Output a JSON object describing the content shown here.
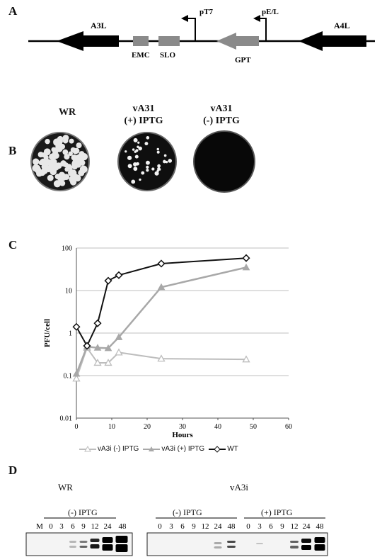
{
  "panels": {
    "A": {
      "letter": "A",
      "genes": {
        "a3l": "A3L",
        "emc": "EMC",
        "slo": "SLO",
        "pt7": "pT7",
        "gpt": "GPT",
        "pel": "pE/L",
        "a4l": "A4L"
      }
    },
    "B": {
      "letter": "B",
      "plates": [
        {
          "label_line1": "WR",
          "label_line2": ""
        },
        {
          "label_line1": "vA31",
          "label_line2": "(+) IPTG"
        },
        {
          "label_line1": "vA31",
          "label_line2": "(-) IPTG"
        }
      ]
    },
    "C": {
      "letter": "C",
      "legend": [
        "vA3i (-) IPTG",
        "vA3i (+) IPTG",
        "WT"
      ]
    },
    "D": {
      "letter": "D",
      "wr_title": "WR",
      "va3i_title": "vA3i",
      "iptg_minus": "(-) IPTG",
      "iptg_plus": "(+) IPTG",
      "wr_lanes": [
        "M",
        "0",
        "3",
        "6",
        "9",
        "12",
        "24",
        "48"
      ],
      "va3i_minus_lanes": [
        "0",
        "3",
        "6",
        "9",
        "12",
        "24",
        "48"
      ],
      "va3i_plus_lanes": [
        "0",
        "3",
        "6",
        "9",
        "12",
        "24",
        "48"
      ]
    }
  },
  "colors": {
    "wt": "#111111",
    "plus": "#a8a8a8",
    "minus": "#bdbdbd",
    "grid": "#bfbfbf"
  },
  "chart_data": {
    "type": "line",
    "title": "",
    "xlabel": "Hours",
    "ylabel": "PFU/cell",
    "xlim": [
      0,
      60
    ],
    "ylim": [
      0.01,
      100
    ],
    "yscale": "log",
    "grid": true,
    "legend_position": "bottom",
    "x_ticks": [
      "0",
      "10",
      "20",
      "30",
      "40",
      "50",
      "60"
    ],
    "y_ticks": [
      "0.01",
      "0.1",
      "1",
      "10",
      "100"
    ],
    "series": [
      {
        "name": "vA3i (-) IPTG",
        "marker": "triangle-open",
        "x": [
          0,
          3,
          6,
          9,
          12,
          24,
          48
        ],
        "y": [
          0.085,
          0.45,
          0.2,
          0.2,
          0.35,
          0.25,
          0.24
        ]
      },
      {
        "name": "vA3i (+) IPTG",
        "marker": "triangle-filled",
        "x": [
          0,
          3,
          6,
          9,
          12,
          24,
          48
        ],
        "y": [
          0.11,
          0.48,
          0.45,
          0.44,
          0.8,
          12,
          35
        ]
      },
      {
        "name": "WT",
        "marker": "diamond-open",
        "x": [
          0,
          3,
          6,
          9,
          12,
          24,
          48
        ],
        "y": [
          1.4,
          0.5,
          1.7,
          17,
          23,
          43,
          58
        ]
      }
    ]
  }
}
